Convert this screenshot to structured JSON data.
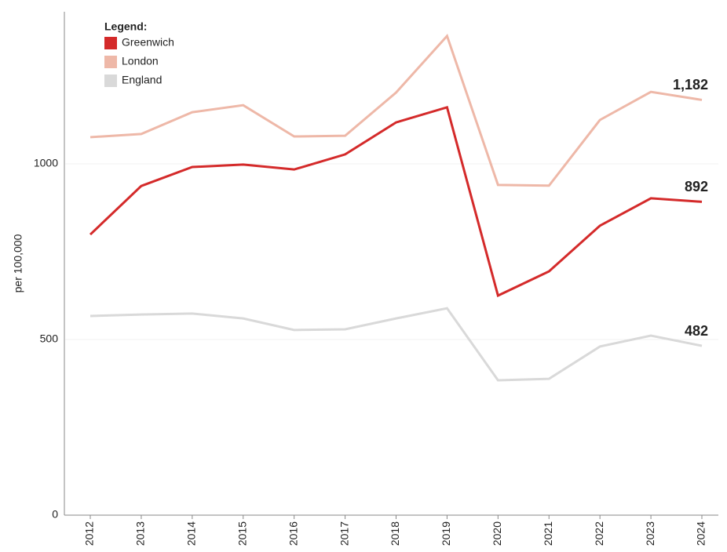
{
  "chart_data": {
    "type": "line",
    "y_label": "per 100,000",
    "legend_title": "Legend:",
    "legend": "upper left",
    "grid": true,
    "categories": [
      "2012",
      "2013",
      "2014",
      "2015",
      "2016",
      "2017",
      "2018",
      "2019",
      "2020",
      "2021",
      "2022",
      "2023",
      "2024"
    ],
    "ylim": [
      0,
      1433
    ],
    "yticks": [
      0,
      500,
      1000
    ],
    "series": [
      {
        "name": "Greenwich",
        "color": "#d42a2a",
        "values": [
          799,
          937,
          991,
          998,
          984,
          1027,
          1118,
          1161,
          625,
          694,
          824,
          902,
          892
        ]
      },
      {
        "name": "London",
        "color": "#eeb8a8",
        "values": [
          1076,
          1085,
          1147,
          1167,
          1078,
          1080,
          1203,
          1364,
          940,
          938,
          1125,
          1205,
          1182
        ],
        "value_labels": [
          null,
          null,
          null,
          null,
          null,
          null,
          null,
          null,
          null,
          null,
          null,
          null,
          "1,182"
        ]
      },
      {
        "name": "England",
        "color": "#d9d9d9",
        "values": [
          567,
          571,
          574,
          560,
          527,
          529,
          560,
          589,
          384,
          388,
          480,
          511,
          482
        ]
      }
    ]
  }
}
